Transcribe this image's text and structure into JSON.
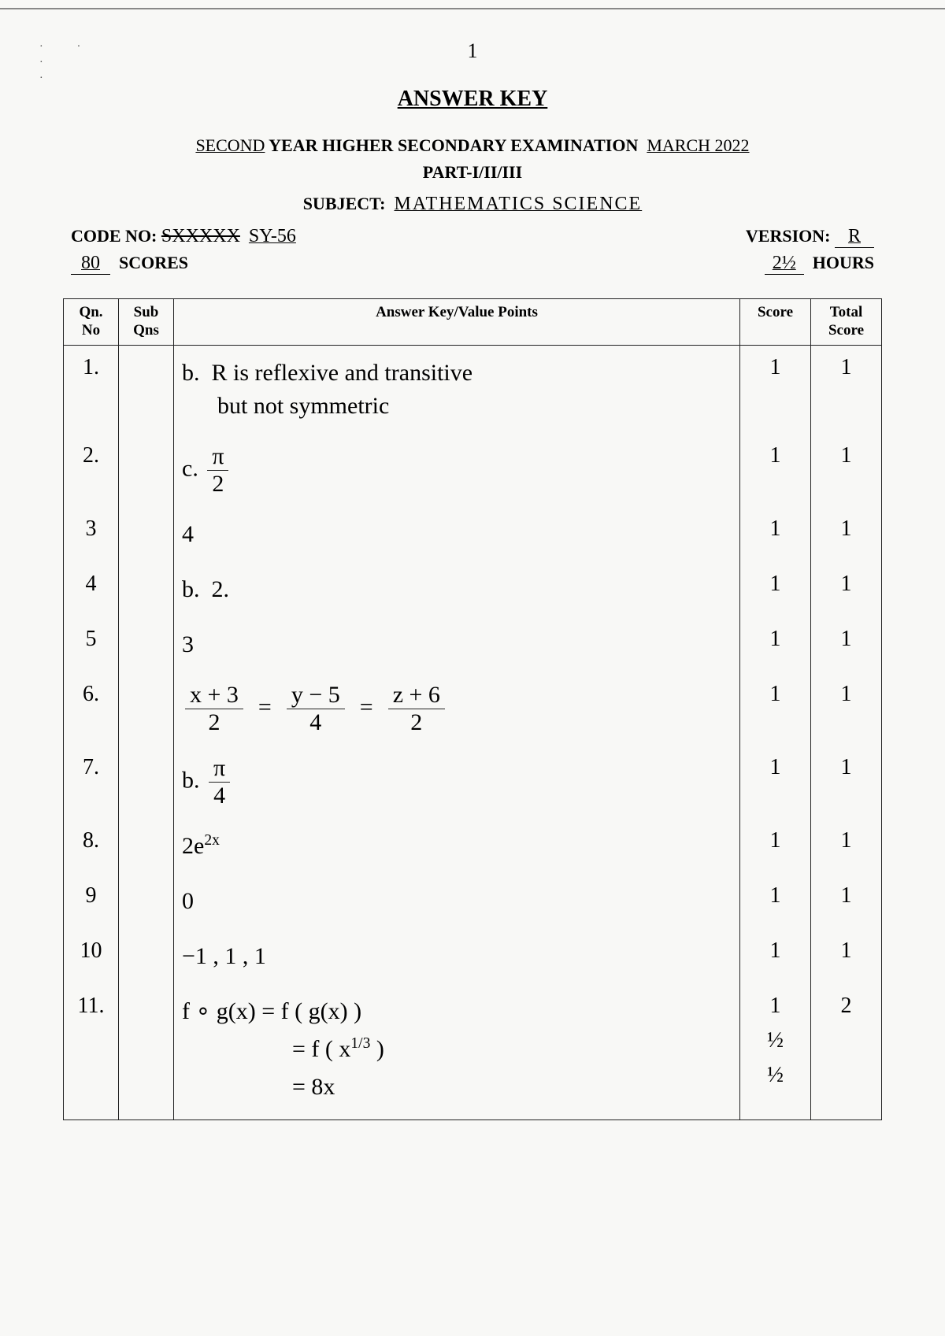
{
  "page_number": "1",
  "title": "ANSWER KEY",
  "exam_prefix_hand": "SECOND",
  "exam_printed": "YEAR  HIGHER SECONDARY  EXAMINATION",
  "exam_suffix_hand": "MARCH 2022",
  "part": "PART-I/II/III",
  "subject_label": "SUBJECT:",
  "subject_hand": "MATHEMATICS  SCIENCE",
  "code_label": "CODE NO:",
  "code_strike": "SXXXXX",
  "code_hand": "SY-56",
  "version_label": "VERSION:",
  "version_hand": "R",
  "scores_hand": "80",
  "scores_label": "SCORES",
  "hours_hand": "2½",
  "hours_label": "HOURS",
  "headers": {
    "qn": "Qn. No",
    "sub": "Sub Qns",
    "ans": "Answer Key/Value Points",
    "score": "Score",
    "total": "Total Score"
  },
  "rows": [
    {
      "qn": "1.",
      "ans_type": "text",
      "ans": "b.  R is reflexive and transitive\n      but not symmetric",
      "score": "1",
      "total": "1"
    },
    {
      "qn": "2.",
      "ans_type": "pi2",
      "prefix": "c. ",
      "num": "π",
      "den": "2",
      "score": "1",
      "total": "1"
    },
    {
      "qn": "3",
      "ans_type": "text",
      "ans": "4",
      "score": "1",
      "total": "1"
    },
    {
      "qn": "4",
      "ans_type": "text",
      "ans": "b.  2.",
      "score": "1",
      "total": "1"
    },
    {
      "qn": "5",
      "ans_type": "text",
      "ans": "3",
      "score": "1",
      "total": "1"
    },
    {
      "qn": "6.",
      "ans_type": "eq6",
      "f1n": "x + 3",
      "f1d": "2",
      "f2n": "y − 5",
      "f2d": "4",
      "f3n": "z + 6",
      "f3d": "2",
      "score": "1",
      "total": "1"
    },
    {
      "qn": "7.",
      "ans_type": "pi2",
      "prefix": "b.  ",
      "num": "π",
      "den": "4",
      "score": "1",
      "total": "1"
    },
    {
      "qn": "8.",
      "ans_type": "exp",
      "base": "2e",
      "exp": "2x",
      "score": "1",
      "total": "1"
    },
    {
      "qn": "9",
      "ans_type": "text",
      "ans": "0",
      "score": "1",
      "total": "1"
    },
    {
      "qn": "10",
      "ans_type": "text",
      "ans": "−1 , 1 , 1",
      "score": "1",
      "total": "1"
    },
    {
      "qn": "11.",
      "ans_type": "q11",
      "l1": "f ∘ g(x)  =  f ( g(x) )",
      "l2a": "=  f ( x",
      "l2exp": "1/3",
      "l2b": " )",
      "l3": "=  8x",
      "s1": "1",
      "s2": "½",
      "s3": "½",
      "total": "2"
    }
  ]
}
